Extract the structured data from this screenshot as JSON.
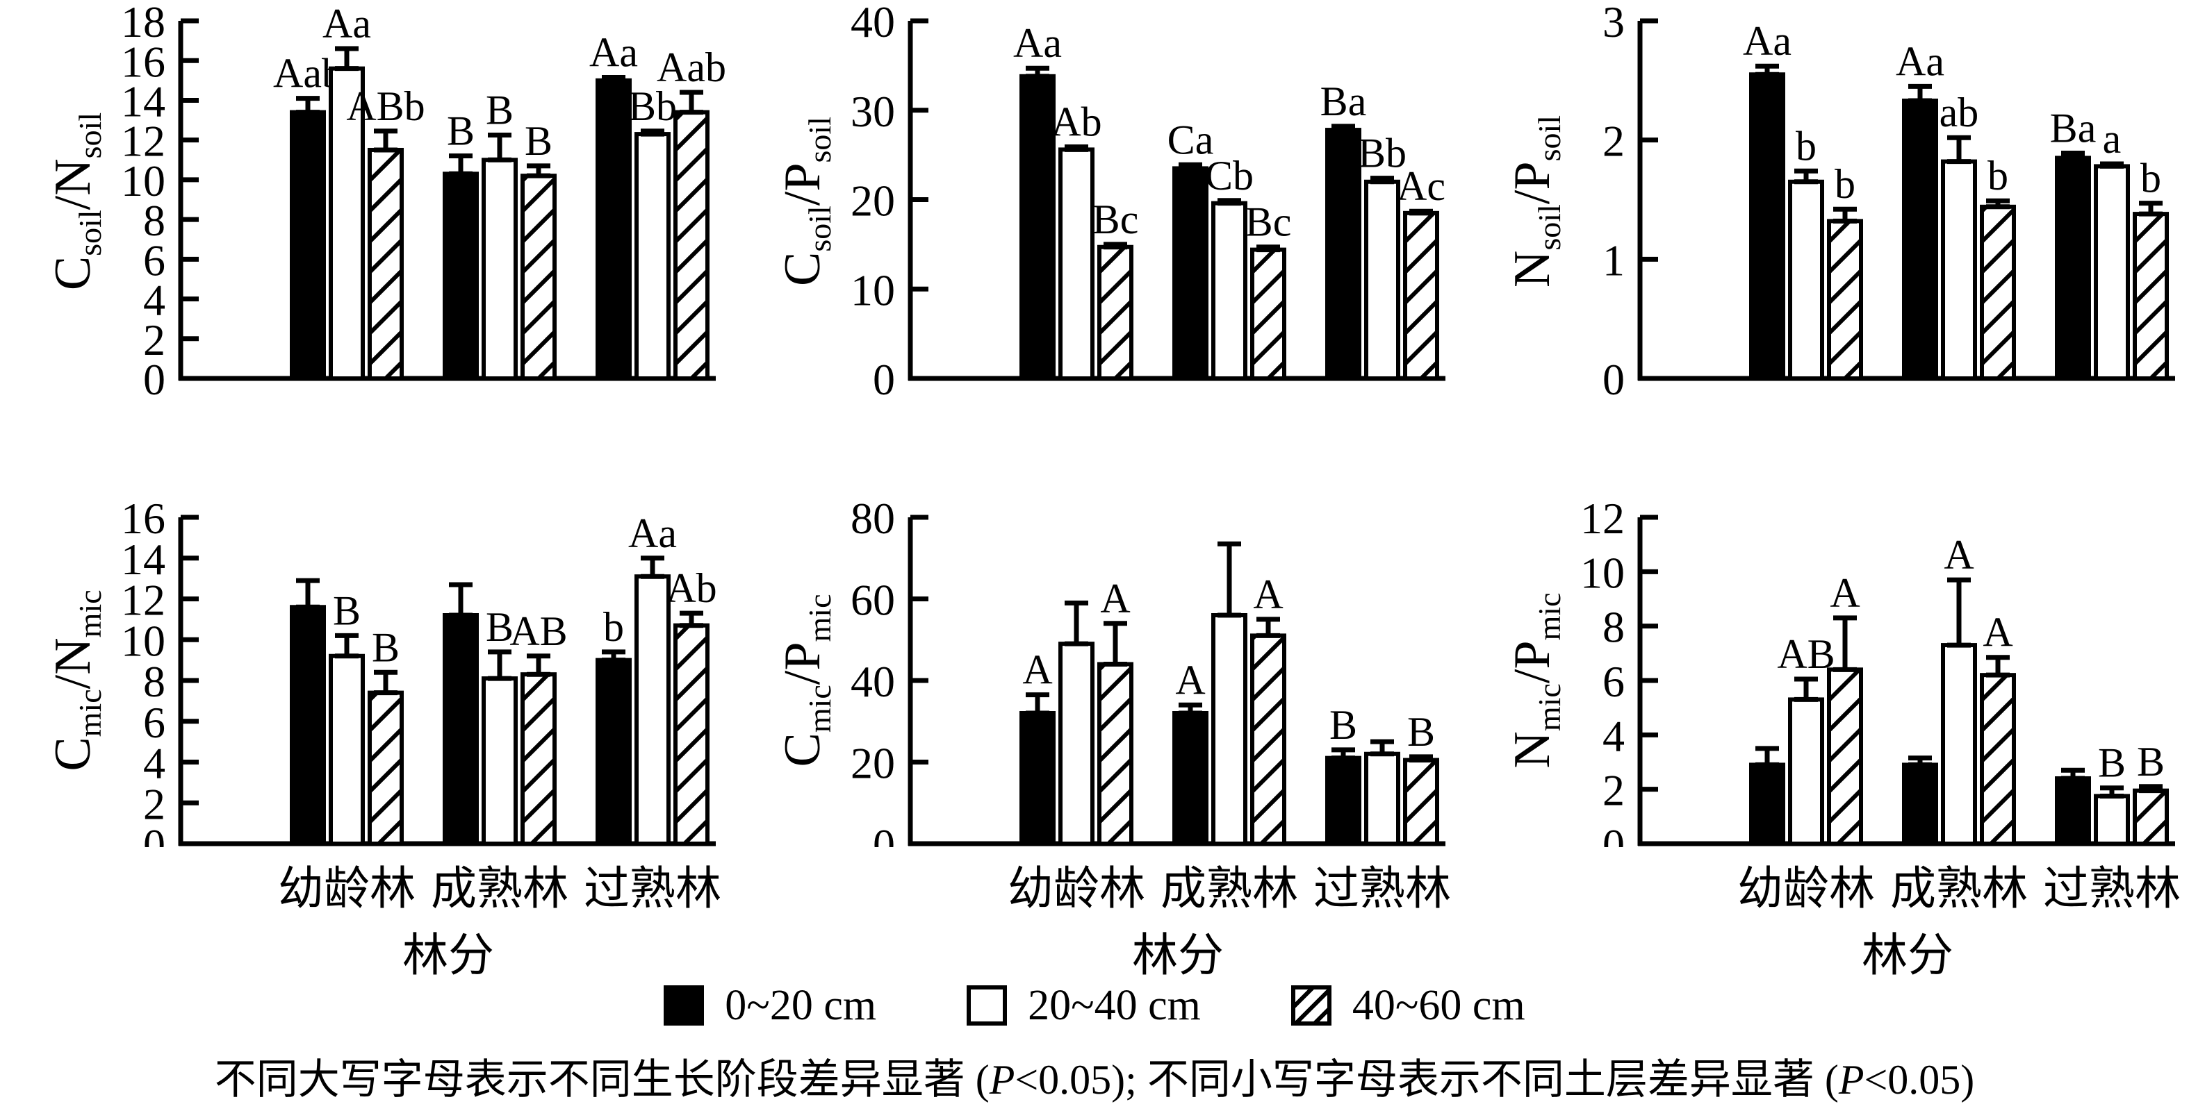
{
  "figure": {
    "x_axis": {
      "categories": [
        "幼龄林",
        "成熟林",
        "过熟林"
      ],
      "title": "林分"
    },
    "legend": {
      "items": [
        {
          "label": "0~20 cm",
          "pattern": "solid"
        },
        {
          "label": "20~40 cm",
          "pattern": "open"
        },
        {
          "label": "40~60 cm",
          "pattern": "hatch"
        }
      ]
    },
    "caption_parts": [
      {
        "text": "不同大写字母表示不同生长阶段差异显著 ("
      },
      {
        "text": "P",
        "italic": true
      },
      {
        "text": "<0.05); 不同小写字母表示不同土层差异显著 ("
      },
      {
        "text": "P",
        "italic": true
      },
      {
        "text": "<0.05)"
      }
    ],
    "colors": {
      "ink": "#000000",
      "background": "#ffffff"
    }
  },
  "chart_data": [
    {
      "id": "c-soil-n-soil",
      "type": "bar",
      "ylabel": "C_soil/N_soil",
      "ylim": [
        0,
        18
      ],
      "ytick_step": 2,
      "grid": false,
      "categories": [
        "幼龄林",
        "成熟林",
        "过熟林"
      ],
      "series": [
        {
          "name": "0~20 cm",
          "pattern": "solid",
          "values": [
            13.4,
            10.3,
            15.0
          ],
          "errors": [
            0.7,
            0.9,
            0.15
          ],
          "letters": [
            "Aab",
            "B",
            "Aa"
          ]
        },
        {
          "name": "20~40 cm",
          "pattern": "open",
          "values": [
            15.6,
            11.0,
            12.3
          ],
          "errors": [
            1.0,
            1.25,
            0.15
          ],
          "letters": [
            "Aa",
            "B",
            "Bb"
          ]
        },
        {
          "name": "40~60 cm",
          "pattern": "hatch",
          "values": [
            11.5,
            10.2,
            13.4
          ],
          "errors": [
            0.95,
            0.5,
            1.0
          ],
          "letters": [
            "ABb",
            "B",
            "Aab"
          ]
        }
      ]
    },
    {
      "id": "c-soil-p-soil",
      "type": "bar",
      "ylabel": "C_soil/P_soil",
      "ylim": [
        0,
        40
      ],
      "ytick_step": 10,
      "grid": false,
      "categories": [
        "幼龄林",
        "成熟林",
        "过熟林"
      ],
      "series": [
        {
          "name": "0~20 cm",
          "pattern": "solid",
          "values": [
            33.8,
            23.5,
            27.8
          ],
          "errors": [
            0.9,
            0.4,
            0.4
          ],
          "letters": [
            "Aa",
            "Ca",
            "Ba"
          ]
        },
        {
          "name": "20~40 cm",
          "pattern": "open",
          "values": [
            25.6,
            19.6,
            22.0
          ],
          "errors": [
            0.3,
            0.3,
            0.4
          ],
          "letters": [
            "Ab",
            "Cb",
            "Bb"
          ]
        },
        {
          "name": "40~60 cm",
          "pattern": "hatch",
          "values": [
            14.7,
            14.4,
            18.5
          ],
          "errors": [
            0.3,
            0.3,
            0.2
          ],
          "letters": [
            "Bc",
            "Bc",
            "Ac"
          ]
        }
      ]
    },
    {
      "id": "n-soil-p-soil",
      "type": "bar",
      "ylabel": "N_soil/P_soil",
      "ylim": [
        0,
        3
      ],
      "ytick_step": 1,
      "grid": false,
      "categories": [
        "幼龄林",
        "成熟林",
        "过熟林"
      ],
      "series": [
        {
          "name": "0~20 cm",
          "pattern": "solid",
          "values": [
            2.55,
            2.33,
            1.85
          ],
          "errors": [
            0.07,
            0.12,
            0.04
          ],
          "letters": [
            "Aa",
            "Aa",
            "Ba"
          ]
        },
        {
          "name": "20~40 cm",
          "pattern": "open",
          "values": [
            1.65,
            1.82,
            1.78
          ],
          "errors": [
            0.09,
            0.2,
            0.02
          ],
          "letters": [
            "b",
            "ab",
            "a"
          ]
        },
        {
          "name": "40~60 cm",
          "pattern": "hatch",
          "values": [
            1.32,
            1.44,
            1.38
          ],
          "errors": [
            0.1,
            0.05,
            0.09
          ],
          "letters": [
            "b",
            "b",
            "b"
          ]
        }
      ]
    },
    {
      "id": "c-mic-n-mic",
      "type": "bar",
      "ylabel": "C_mic/N_mic",
      "ylim": [
        0,
        16
      ],
      "ytick_step": 2,
      "grid": false,
      "categories": [
        "幼龄林",
        "成熟林",
        "过熟林"
      ],
      "series": [
        {
          "name": "0~20 cm",
          "pattern": "solid",
          "values": [
            11.6,
            11.2,
            9.0
          ],
          "errors": [
            1.3,
            1.5,
            0.4
          ],
          "letters": [
            "",
            "",
            "b"
          ]
        },
        {
          "name": "20~40 cm",
          "pattern": "open",
          "values": [
            9.2,
            8.1,
            13.1
          ],
          "errors": [
            1.0,
            1.3,
            0.9
          ],
          "letters": [
            "B",
            "B",
            "Aa"
          ]
        },
        {
          "name": "40~60 cm",
          "pattern": "hatch",
          "values": [
            7.4,
            8.3,
            10.7
          ],
          "errors": [
            1.0,
            0.9,
            0.6
          ],
          "letters": [
            "B",
            "AB",
            "Ab"
          ]
        }
      ]
    },
    {
      "id": "c-mic-p-mic",
      "type": "bar",
      "ylabel": "C_mic/P_mic",
      "ylim": [
        0,
        80
      ],
      "ytick_step": 20,
      "grid": false,
      "categories": [
        "幼龄林",
        "成熟林",
        "过熟林"
      ],
      "series": [
        {
          "name": "0~20 cm",
          "pattern": "solid",
          "values": [
            32,
            32,
            21
          ],
          "errors": [
            4.5,
            2,
            2
          ],
          "letters": [
            "A",
            "A",
            "B"
          ]
        },
        {
          "name": "20~40 cm",
          "pattern": "open",
          "values": [
            49,
            56,
            22
          ],
          "errors": [
            10,
            17.5,
            3
          ],
          "letters": [
            "",
            "",
            ""
          ]
        },
        {
          "name": "40~60 cm",
          "pattern": "hatch",
          "values": [
            44,
            51,
            20.5
          ],
          "errors": [
            10,
            4,
            0.8
          ],
          "letters": [
            "A",
            "A",
            "B"
          ]
        }
      ]
    },
    {
      "id": "n-mic-p-mic",
      "type": "bar",
      "ylabel": "N_mic/P_mic",
      "ylim": [
        0,
        12
      ],
      "ytick_step": 2,
      "grid": false,
      "categories": [
        "幼龄林",
        "成熟林",
        "过熟林"
      ],
      "series": [
        {
          "name": "0~20 cm",
          "pattern": "solid",
          "values": [
            2.9,
            2.9,
            2.4
          ],
          "errors": [
            0.6,
            0.25,
            0.3
          ],
          "letters": [
            "",
            "",
            ""
          ]
        },
        {
          "name": "20~40 cm",
          "pattern": "open",
          "values": [
            5.3,
            7.3,
            1.75
          ],
          "errors": [
            0.75,
            2.4,
            0.3
          ],
          "letters": [
            "AB",
            "A",
            "B"
          ]
        },
        {
          "name": "40~60 cm",
          "pattern": "hatch",
          "values": [
            6.4,
            6.2,
            1.95
          ],
          "errors": [
            1.9,
            0.65,
            0.15
          ],
          "letters": [
            "A",
            "A",
            "B"
          ]
        }
      ]
    }
  ]
}
